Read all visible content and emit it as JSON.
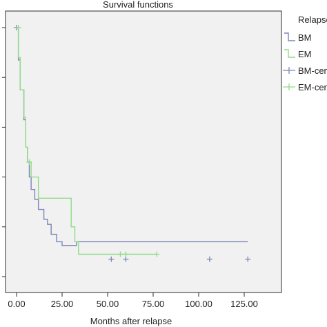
{
  "chart_data": {
    "type": "line",
    "title": "Survival functions",
    "xlabel": "Months after relapse",
    "ylabel": "",
    "xlim": [
      -6,
      140
    ],
    "ylim": [
      -0.02,
      1.02
    ],
    "x_ticks": [
      "0.00",
      "25.00",
      "50.00",
      "75.00",
      "100.00",
      "125.00"
    ],
    "x_tick_values": [
      0,
      25,
      50,
      75,
      100,
      125
    ],
    "y_tick_values": [
      0,
      0.2,
      0.4,
      0.6,
      0.8,
      1.0
    ],
    "grid": false,
    "legend_title": "Relapse",
    "legend": [
      {
        "label": "BM",
        "kind": "step",
        "color": "#7b86b8"
      },
      {
        "label": "EM",
        "kind": "step",
        "color": "#8fdc85"
      },
      {
        "label": "BM-censored",
        "kind": "censor",
        "color": "#7b86b8"
      },
      {
        "label": "EM-censored",
        "kind": "censor",
        "color": "#8fdc85"
      }
    ],
    "series": [
      {
        "name": "BM",
        "color": "#7b86b8",
        "x": [
          0,
          1,
          2,
          4,
          5,
          6,
          7,
          8,
          10,
          12,
          15,
          17,
          19,
          22,
          25,
          33
        ],
        "y": [
          1.0,
          0.87,
          0.75,
          0.63,
          0.52,
          0.46,
          0.4,
          0.35,
          0.31,
          0.27,
          0.23,
          0.21,
          0.17,
          0.14,
          0.125,
          0.14
        ],
        "censored": [
          {
            "x": 0,
            "y": 1.0
          },
          {
            "x": 52,
            "y": 0.07
          },
          {
            "x": 60,
            "y": 0.07
          },
          {
            "x": 106,
            "y": 0.07
          },
          {
            "x": 127,
            "y": 0.07
          }
        ]
      },
      {
        "name": "EM",
        "color": "#8fdc85",
        "x": [
          0,
          1,
          2,
          4,
          5,
          6,
          8,
          12,
          30,
          32,
          34
        ],
        "y": [
          1.0,
          0.88,
          0.75,
          0.64,
          0.52,
          0.46,
          0.4,
          0.315,
          0.2,
          0.14,
          0.09
        ],
        "censored": [
          {
            "x": 1,
            "y": 1.0
          },
          {
            "x": 7,
            "y": 0.46
          },
          {
            "x": 57,
            "y": 0.09
          },
          {
            "x": 60,
            "y": 0.09
          },
          {
            "x": 77,
            "y": 0.09
          }
        ]
      }
    ]
  }
}
